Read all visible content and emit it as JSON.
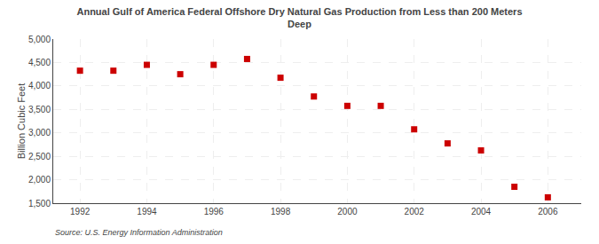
{
  "chart_data": {
    "type": "scatter",
    "title": "Annual Gulf of America Federal Offshore Dry Natural Gas Production from Less than 200 Meters\nDeep",
    "ylabel": "Billion Cubic Feet",
    "source": "Source: U.S. Energy Information Administration",
    "x": [
      1992,
      1993,
      1994,
      1995,
      1996,
      1997,
      1998,
      1999,
      2000,
      2001,
      2002,
      2003,
      2004,
      2005,
      2006
    ],
    "values": [
      4325,
      4325,
      4450,
      4250,
      4450,
      4575,
      4175,
      3775,
      3575,
      3575,
      3075,
      2775,
      2625,
      1850,
      1625
    ],
    "color": "#cc0000",
    "marker": "square",
    "grid": true,
    "xlim": [
      1991.2,
      2007
    ],
    "xticks": [
      1992,
      1994,
      1996,
      1998,
      2000,
      2002,
      2004,
      2006
    ],
    "ylim": [
      1500,
      5000
    ],
    "yticks": [
      {
        "value": 1500,
        "label": "1,500"
      },
      {
        "value": 2000,
        "label": "2,000"
      },
      {
        "value": 2500,
        "label": "2,500"
      },
      {
        "value": 3000,
        "label": "3,000"
      },
      {
        "value": 3500,
        "label": "3,500"
      },
      {
        "value": 4000,
        "label": "4,000"
      },
      {
        "value": 4500,
        "label": "4,500"
      },
      {
        "value": 5000,
        "label": "5,000"
      }
    ]
  }
}
